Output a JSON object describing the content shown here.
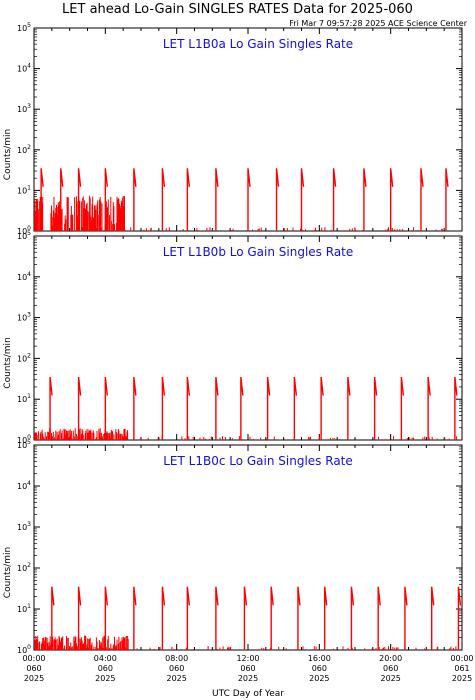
{
  "title": "LET ahead Lo-Gain SINGLES RATES Data for 2025-060",
  "timestamp": "Fri Mar  7 09:57:28 2025 ACE Science Center",
  "ylabel": "Counts/min",
  "xlabel": "UTC Day of Year",
  "colors": {
    "data": "#ff0000",
    "panel_title": "#1010e0",
    "axes": "#000000"
  },
  "x_ticks": [
    {
      "hour": 0,
      "time": "00:00",
      "doy": "060",
      "year": "2025"
    },
    {
      "hour": 4,
      "time": "04:00",
      "doy": "060",
      "year": "2025"
    },
    {
      "hour": 8,
      "time": "08:00",
      "doy": "060",
      "year": "2025"
    },
    {
      "hour": 12,
      "time": "12:00",
      "doy": "060",
      "year": "2025"
    },
    {
      "hour": 16,
      "time": "16:00",
      "doy": "060",
      "year": "2025"
    },
    {
      "hour": 20,
      "time": "20:00",
      "doy": "060",
      "year": "2025"
    },
    {
      "hour": 24,
      "time": "00:00",
      "doy": "061",
      "year": "2025"
    }
  ],
  "y_ticks": [
    {
      "exp": 0,
      "base": "10",
      "sup": "0"
    },
    {
      "exp": 1,
      "base": "10",
      "sup": "1"
    },
    {
      "exp": 2,
      "base": "10",
      "sup": "2"
    },
    {
      "exp": 3,
      "base": "10",
      "sup": "3"
    },
    {
      "exp": 4,
      "base": "10",
      "sup": "4"
    },
    {
      "exp": 5,
      "base": "10",
      "sup": "5"
    }
  ],
  "chart_data": [
    {
      "type": "line",
      "title": "LET L1B0a Lo Gain Singles Rate",
      "xlim_hours": [
        0,
        24
      ],
      "ylim": [
        1,
        100000
      ],
      "yscale": "log",
      "spikes_hours": [
        0.4,
        1.5,
        2.5,
        4.0,
        5.6,
        7.2,
        8.6,
        10.2,
        12.0,
        13.6,
        15.0,
        16.8,
        18.5,
        20.0,
        21.7,
        23.1
      ],
      "spike_peak": 35,
      "elevated_hours": [
        [
          0.9,
          5.1
        ],
        [
          0,
          0.5
        ]
      ],
      "elevated_level": 5,
      "baseline": 1
    },
    {
      "type": "line",
      "title": "LET L1B0b Lo Gain Singles Rate",
      "xlim_hours": [
        0,
        24
      ],
      "ylim": [
        1,
        100000
      ],
      "yscale": "log",
      "spikes_hours": [
        0.9,
        2.5,
        4.0,
        5.6,
        7.2,
        8.6,
        10.2,
        11.6,
        13.1,
        14.6,
        16.1,
        17.6,
        19.1,
        20.6,
        22.1,
        23.6
      ],
      "spike_peak": 35,
      "elevated_hours": [
        [
          0,
          5.3
        ]
      ],
      "elevated_level": 1.6,
      "baseline": 1
    },
    {
      "type": "line",
      "title": "LET L1B0c Lo Gain Singles Rate",
      "xlim_hours": [
        0,
        24
      ],
      "ylim": [
        1,
        100000
      ],
      "yscale": "log",
      "spikes_hours": [
        1.0,
        2.5,
        4.0,
        5.6,
        7.2,
        8.6,
        10.2,
        11.8,
        13.3,
        14.8,
        16.3,
        17.8,
        19.3,
        20.8,
        22.3,
        23.8
      ],
      "spike_peak": 35,
      "elevated_hours": [
        [
          0,
          5.3
        ]
      ],
      "elevated_level": 1.8,
      "baseline": 1
    }
  ]
}
